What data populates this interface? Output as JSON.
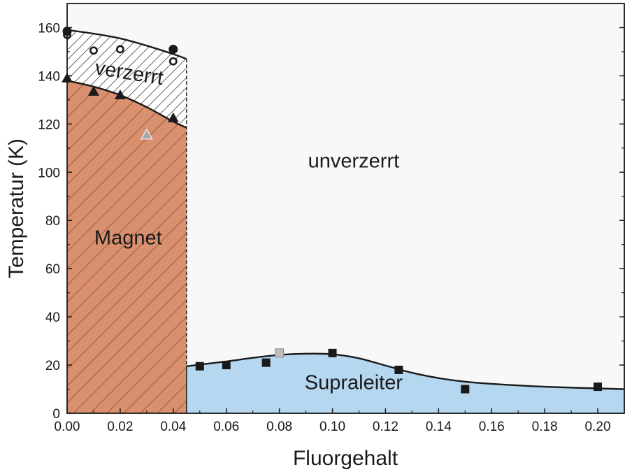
{
  "chart_data": {
    "type": "scatter",
    "title": "",
    "xlabel": "Fluorgehalt",
    "ylabel": "Temperatur (K)",
    "xlim": [
      0.0,
      0.21
    ],
    "ylim": [
      0,
      170
    ],
    "xticks": [
      0.0,
      0.02,
      0.04,
      0.06,
      0.08,
      0.1,
      0.12,
      0.14,
      0.16,
      0.18,
      0.2
    ],
    "xtick_labels": [
      "0.00",
      "0.02",
      "0.04",
      "0.06",
      "0.08",
      "0.10",
      "0.12",
      "0.14",
      "0.16",
      "0.18",
      "0.20"
    ],
    "yticks": [
      0,
      20,
      40,
      60,
      80,
      100,
      120,
      140,
      160
    ],
    "ytick_labels": [
      "0",
      "20",
      "40",
      "60",
      "80",
      "100",
      "120",
      "140",
      "160"
    ],
    "grid": false,
    "phase_boundary_x": 0.045,
    "regions": [
      {
        "name": "verzerrt",
        "label": "verzerrt",
        "color": "#ffffff",
        "hatch": true,
        "label_pos": [
          0.023,
          138.5
        ]
      },
      {
        "name": "magnet",
        "label": "Magnet",
        "color": "#d9906f",
        "hatch": true,
        "label_pos": [
          0.023,
          70
        ]
      },
      {
        "name": "unverzerrt",
        "label": "unverzerrt",
        "color": "#f8f8f8",
        "hatch": false,
        "label_pos": [
          0.108,
          102
        ]
      },
      {
        "name": "supraleiter",
        "label": "Supraleiter",
        "color": "#b6d7f0",
        "hatch": false,
        "label_pos": [
          0.108,
          10
        ]
      }
    ],
    "curves": {
      "structural_transition": {
        "x": [
          0.0,
          0.01,
          0.02,
          0.03,
          0.04,
          0.045
        ],
        "y": [
          159,
          157.5,
          155.5,
          152.5,
          149,
          147
        ]
      },
      "magnetic_transition": {
        "x": [
          0.0,
          0.01,
          0.02,
          0.03,
          0.04,
          0.045
        ],
        "y": [
          138,
          135.5,
          132,
          127,
          121,
          118.5
        ]
      },
      "superconducting_dome": {
        "x": [
          0.045,
          0.06,
          0.07,
          0.08,
          0.09,
          0.1,
          0.11,
          0.12,
          0.13,
          0.14,
          0.15,
          0.16,
          0.18,
          0.21
        ],
        "y": [
          19.5,
          21.5,
          23,
          24.2,
          24.7,
          24.5,
          22.8,
          19.8,
          16.8,
          14.6,
          13.1,
          12.2,
          11.0,
          10.0
        ]
      }
    },
    "series": [
      {
        "marker": "open-circle",
        "color": "#1a1a1a",
        "x": [
          0.0,
          0.01,
          0.02,
          0.04
        ],
        "y": [
          157,
          150.5,
          151,
          146
        ]
      },
      {
        "marker": "filled-circle",
        "color": "#1a1a1a",
        "x": [
          0.0,
          0.04
        ],
        "y": [
          158.5,
          151
        ]
      },
      {
        "marker": "filled-triangle",
        "color": "#1a1a1a",
        "x": [
          0.0,
          0.01,
          0.02,
          0.04
        ],
        "y": [
          139,
          133.5,
          132,
          122.5
        ]
      },
      {
        "marker": "gray-triangle",
        "color": "#a8a8a8",
        "x": [
          0.03
        ],
        "y": [
          115.5
        ]
      },
      {
        "marker": "filled-square",
        "color": "#1a1a1a",
        "x": [
          0.05,
          0.06,
          0.075,
          0.1,
          0.125,
          0.15,
          0.2
        ],
        "y": [
          19.5,
          20,
          21,
          25,
          18,
          10,
          11
        ]
      },
      {
        "marker": "gray-square",
        "color": "#bdbdbd",
        "x": [
          0.08
        ],
        "y": [
          25
        ]
      }
    ]
  }
}
